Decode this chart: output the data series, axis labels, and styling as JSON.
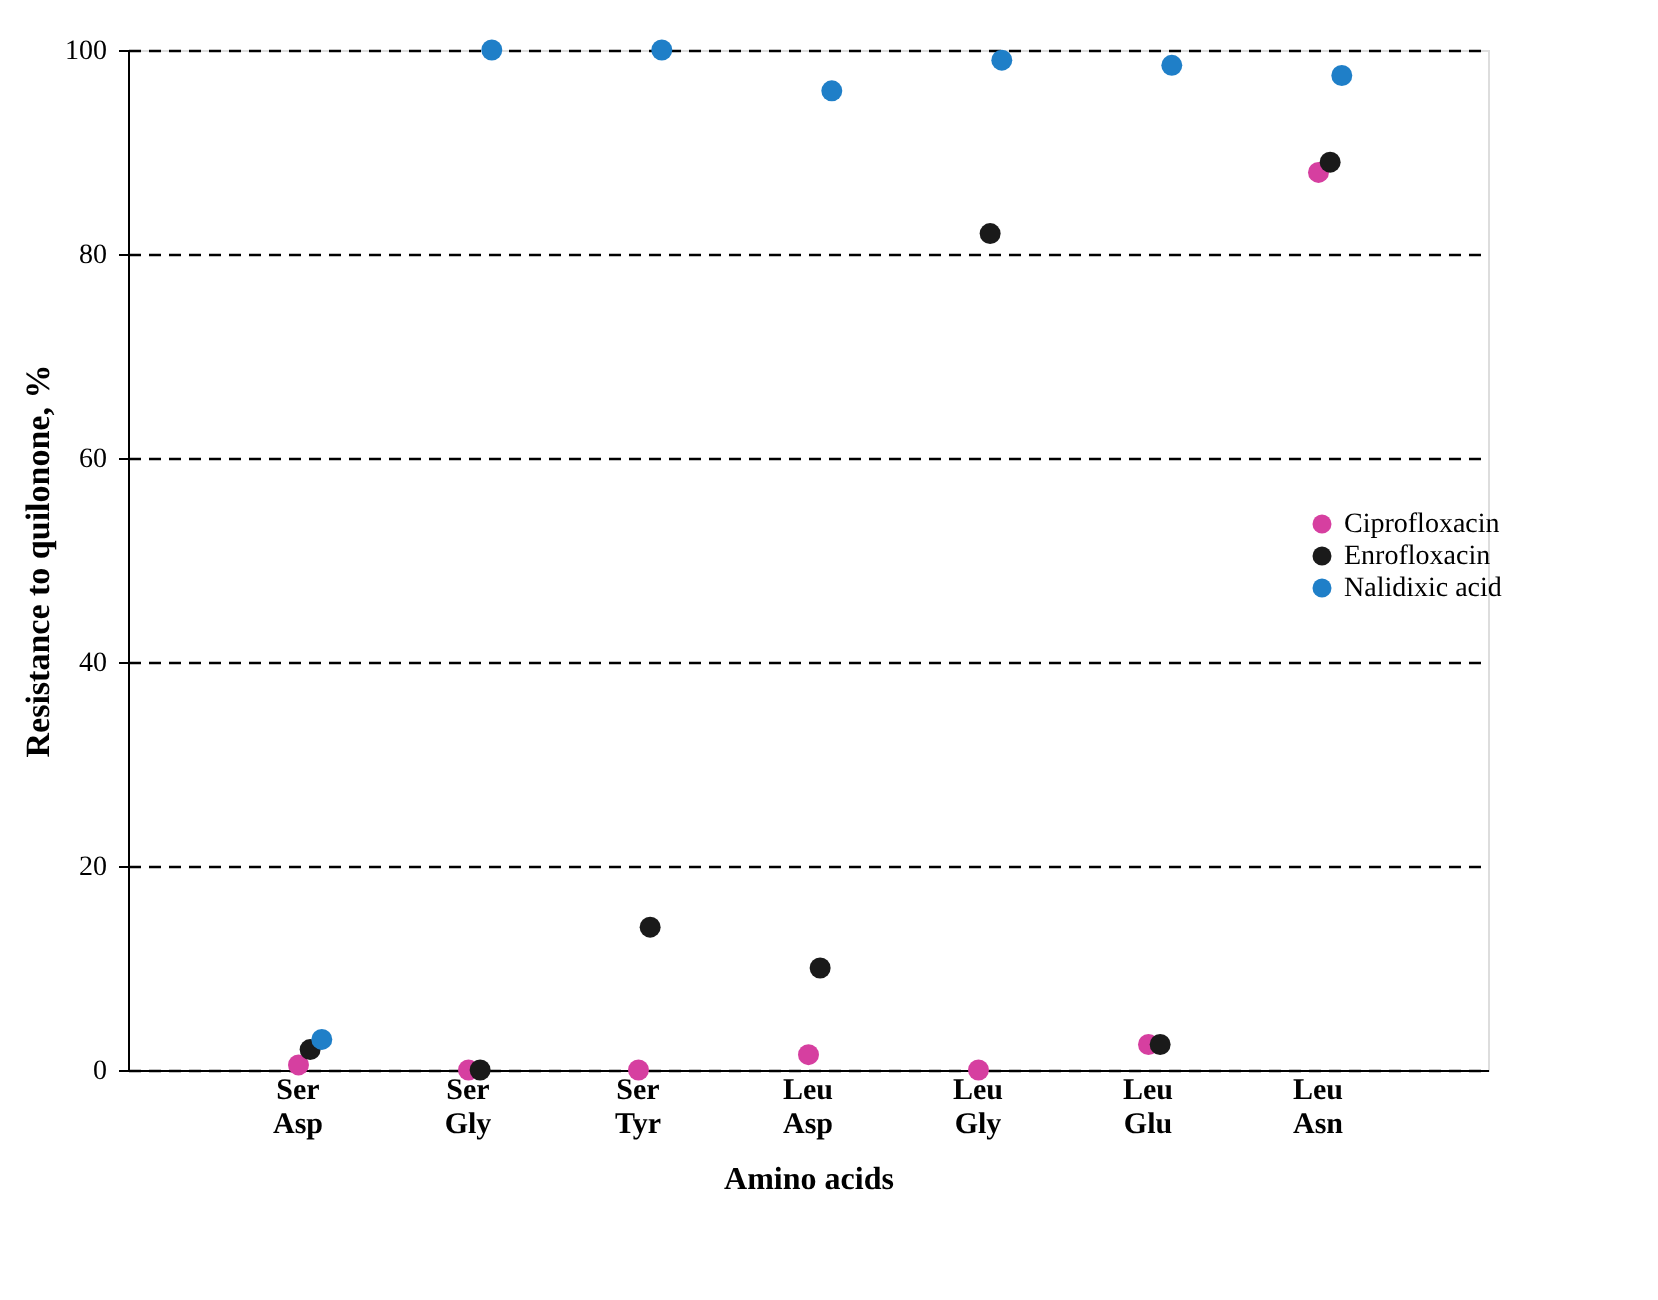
{
  "chart_data": {
    "type": "scatter",
    "xlabel": "Amino acids",
    "ylabel": "Resistance to quilonone, %",
    "categories": [
      "Ser\nAsp",
      "Ser\nGly",
      "Ser\nTyr",
      "Leu\nAsp",
      "Leu\nGly",
      "Leu\nGlu",
      "Leu\nAsn"
    ],
    "series": [
      {
        "name": "Ciprofloxacin",
        "color": "#d63fa0",
        "values": [
          0.5,
          0,
          0,
          1.5,
          0,
          2.5,
          88
        ]
      },
      {
        "name": "Enrofloxacin",
        "color": "#1a1a1a",
        "values": [
          2,
          0,
          14,
          10,
          82,
          2.5,
          89
        ]
      },
      {
        "name": "Nalidixic acid",
        "color": "#1f7fc8",
        "values": [
          3,
          100,
          100,
          96,
          99,
          98.5,
          97.5
        ]
      }
    ],
    "ylim": [
      0,
      100
    ],
    "yticks": [
      0,
      20,
      40,
      60,
      80,
      100
    ],
    "grid": "y",
    "line_style": "dashed",
    "marker": "circle",
    "legend": "right"
  }
}
